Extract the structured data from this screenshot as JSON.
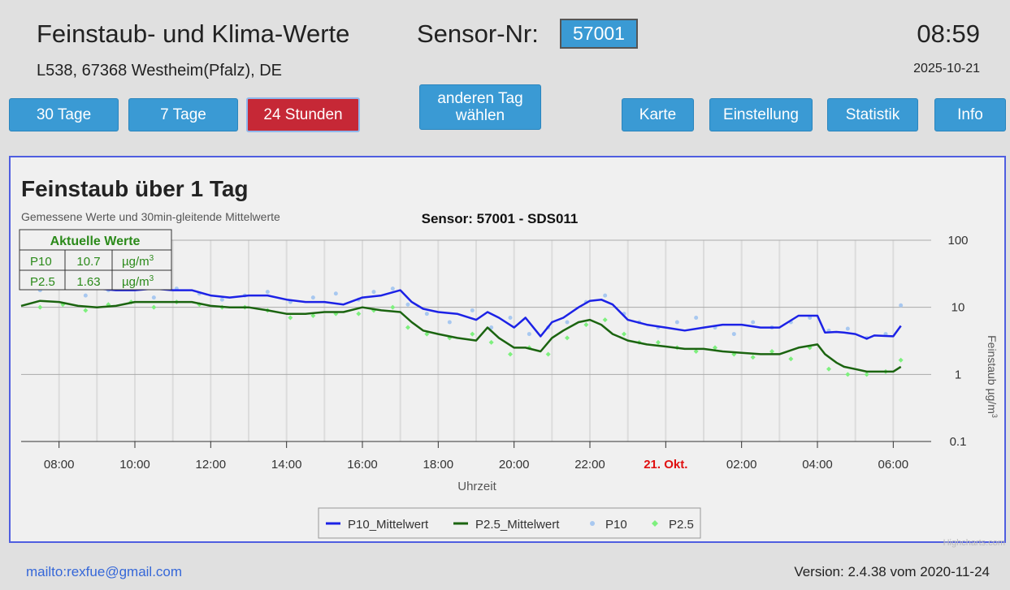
{
  "header": {
    "title": "Feinstaub- und Klima-Werte",
    "location": "L538, 67368 Westheim(Pfalz), DE",
    "sensor_label": "Sensor-Nr:",
    "sensor_value": "57001",
    "clock": "08:59",
    "date": "2025-10-21"
  },
  "nav": {
    "days30": "30 Tage",
    "days7": "7 Tage",
    "hours24": "24 Stunden",
    "other_day_1": "anderen Tag",
    "other_day_2": "wählen",
    "map": "Karte",
    "settings": "Einstellung",
    "stats": "Statistik",
    "info": "Info"
  },
  "colors": {
    "button": "#3a9ad4",
    "active_button": "#c62836",
    "p10_line": "#1c22e6",
    "p25_line": "#1b6410",
    "p10_points": "#a8c8f0",
    "p25_points": "#7ef07e"
  },
  "chart_data": {
    "type": "line",
    "title": "Feinstaub über 1 Tag",
    "subtitle": "Gemessene Werte und 30min-gleitende Mittelwerte",
    "sensor_title": "Sensor: 57001 - SDS011",
    "xlabel": "Uhrzeit",
    "ylabel": "Feinstaub µg/m³",
    "ylabel_text": "Feinstaub µg/m",
    "ylabel_sup": "3",
    "yscale": "log",
    "ylim": [
      0.1,
      100
    ],
    "y_ticks": [
      "100",
      "10",
      "1",
      "0.1"
    ],
    "x_ticks": [
      "08:00",
      "10:00",
      "12:00",
      "14:00",
      "16:00",
      "18:00",
      "20:00",
      "22:00",
      "21. Okt.",
      "02:00",
      "04:00",
      "06:00"
    ],
    "x_tick_highlight": "21. Okt.",
    "xlim_hours": [
      7.0,
      31.0
    ],
    "grid": true,
    "legend_placement": "bottom-center",
    "current_values": {
      "title": "Aktuelle Werte",
      "unit": "µg/m",
      "unit_sup": "3",
      "rows": [
        {
          "name": "P10",
          "value": "10.7"
        },
        {
          "name": "P2.5",
          "value": "1.63"
        }
      ]
    },
    "series": [
      {
        "name": "P10_Mittelwert",
        "kind": "line",
        "x": [
          7,
          7.5,
          8,
          8.5,
          9,
          9.5,
          10,
          10.5,
          11,
          11.5,
          12,
          12.5,
          13,
          13.5,
          14,
          14.5,
          15,
          15.5,
          16,
          16.5,
          17,
          17.3,
          17.6,
          18,
          18.5,
          19,
          19.3,
          19.6,
          20,
          20.3,
          20.7,
          21,
          21.3,
          21.7,
          22,
          22.3,
          22.6,
          23,
          23.5,
          24,
          24.5,
          25,
          25.5,
          26,
          26.5,
          27,
          27.5,
          28,
          28.2,
          28.5,
          28.7,
          29,
          29.3,
          29.5,
          30,
          30.2
        ],
        "y": [
          21,
          22,
          22,
          20,
          19,
          18,
          18,
          19,
          18,
          18,
          15,
          14,
          15,
          15,
          13,
          12,
          12,
          11,
          14,
          15,
          18,
          12,
          9.5,
          8.5,
          8,
          6.5,
          8.5,
          7,
          5,
          7,
          3.7,
          6,
          7,
          10,
          12.5,
          13,
          11,
          6.5,
          5.5,
          5,
          4.5,
          5,
          5.5,
          5.5,
          5,
          5,
          7.5,
          7.5,
          4.2,
          4.3,
          4.2,
          4,
          3.4,
          3.8,
          3.7,
          5.3
        ]
      },
      {
        "name": "P2.5_Mittelwert",
        "kind": "line",
        "x": [
          7,
          7.5,
          8,
          8.5,
          9,
          9.5,
          10,
          10.5,
          11,
          11.5,
          12,
          12.5,
          13,
          13.5,
          14,
          14.5,
          15,
          15.5,
          16,
          16.5,
          17,
          17.3,
          17.6,
          18,
          18.5,
          19,
          19.3,
          19.6,
          20,
          20.3,
          20.7,
          21,
          21.3,
          21.7,
          22,
          22.3,
          22.6,
          23,
          23.5,
          24,
          24.5,
          25,
          25.5,
          26,
          26.5,
          27,
          27.5,
          28,
          28.2,
          28.5,
          28.7,
          29,
          29.3,
          29.5,
          30,
          30.2
        ],
        "y": [
          10.5,
          12.5,
          12,
          10.5,
          10,
          10.5,
          12,
          12,
          12,
          12,
          10.5,
          10,
          10,
          9,
          8,
          8,
          8.5,
          8.5,
          10,
          9,
          8.5,
          6,
          4.5,
          4,
          3.5,
          3.2,
          5,
          3.5,
          2.5,
          2.5,
          2.2,
          3.5,
          4.5,
          6,
          6.5,
          5.5,
          4,
          3.2,
          2.8,
          2.6,
          2.4,
          2.4,
          2.2,
          2.1,
          2.0,
          2.0,
          2.5,
          2.8,
          2.0,
          1.5,
          1.3,
          1.2,
          1.1,
          1.1,
          1.1,
          1.3
        ]
      },
      {
        "name": "P10",
        "kind": "scatter",
        "x": [
          7.5,
          8.1,
          8.7,
          9.3,
          9.9,
          10.5,
          11.1,
          11.7,
          12.3,
          12.9,
          13.5,
          14.1,
          14.7,
          15.3,
          15.9,
          16.3,
          16.8,
          17.2,
          17.7,
          18.3,
          18.9,
          19.4,
          19.9,
          20.4,
          20.9,
          21.4,
          21.9,
          22.4,
          22.9,
          23.3,
          23.8,
          24.3,
          24.8,
          25.3,
          25.8,
          26.3,
          26.8,
          27.3,
          27.8,
          28.3,
          28.8,
          29.3,
          29.8,
          30.2
        ],
        "y": [
          18,
          23,
          15,
          18,
          20,
          14,
          19,
          16,
          13,
          15,
          17,
          12,
          14,
          16,
          13,
          17,
          19,
          11,
          8,
          6,
          9,
          5,
          7,
          4,
          5,
          6,
          12,
          15,
          8,
          6,
          5,
          6,
          7,
          5,
          4,
          6,
          5,
          6,
          7,
          4.5,
          4.8,
          3.5,
          4,
          10.7
        ]
      },
      {
        "name": "P2.5",
        "kind": "scatter",
        "x": [
          7.5,
          8.1,
          8.7,
          9.3,
          9.9,
          10.5,
          11.1,
          11.7,
          12.3,
          12.9,
          13.5,
          14.1,
          14.7,
          15.3,
          15.9,
          16.3,
          16.8,
          17.2,
          17.7,
          18.3,
          18.9,
          19.4,
          19.9,
          20.4,
          20.9,
          21.4,
          21.9,
          22.4,
          22.9,
          23.3,
          23.8,
          24.3,
          24.8,
          25.3,
          25.8,
          26.3,
          26.8,
          27.3,
          27.8,
          28.3,
          28.8,
          29.3,
          29.8,
          30.2
        ],
        "y": [
          10,
          11,
          9,
          11,
          12,
          10,
          12,
          11,
          10,
          10,
          9,
          7,
          7.5,
          8,
          8,
          9,
          10,
          5,
          4,
          3.5,
          4,
          3,
          2,
          2.5,
          2,
          3.5,
          5.5,
          6.5,
          4,
          3,
          3,
          2.5,
          2.2,
          2.5,
          2,
          1.8,
          2.2,
          1.7,
          2.5,
          1.2,
          1.0,
          1.0,
          1.1,
          1.63
        ]
      }
    ]
  },
  "chart_credits": "Highcharts.com",
  "footer": {
    "mail": "mailto:rexfue@gmail.com",
    "version": "Version: 2.4.38 vom 2020-11-24"
  }
}
